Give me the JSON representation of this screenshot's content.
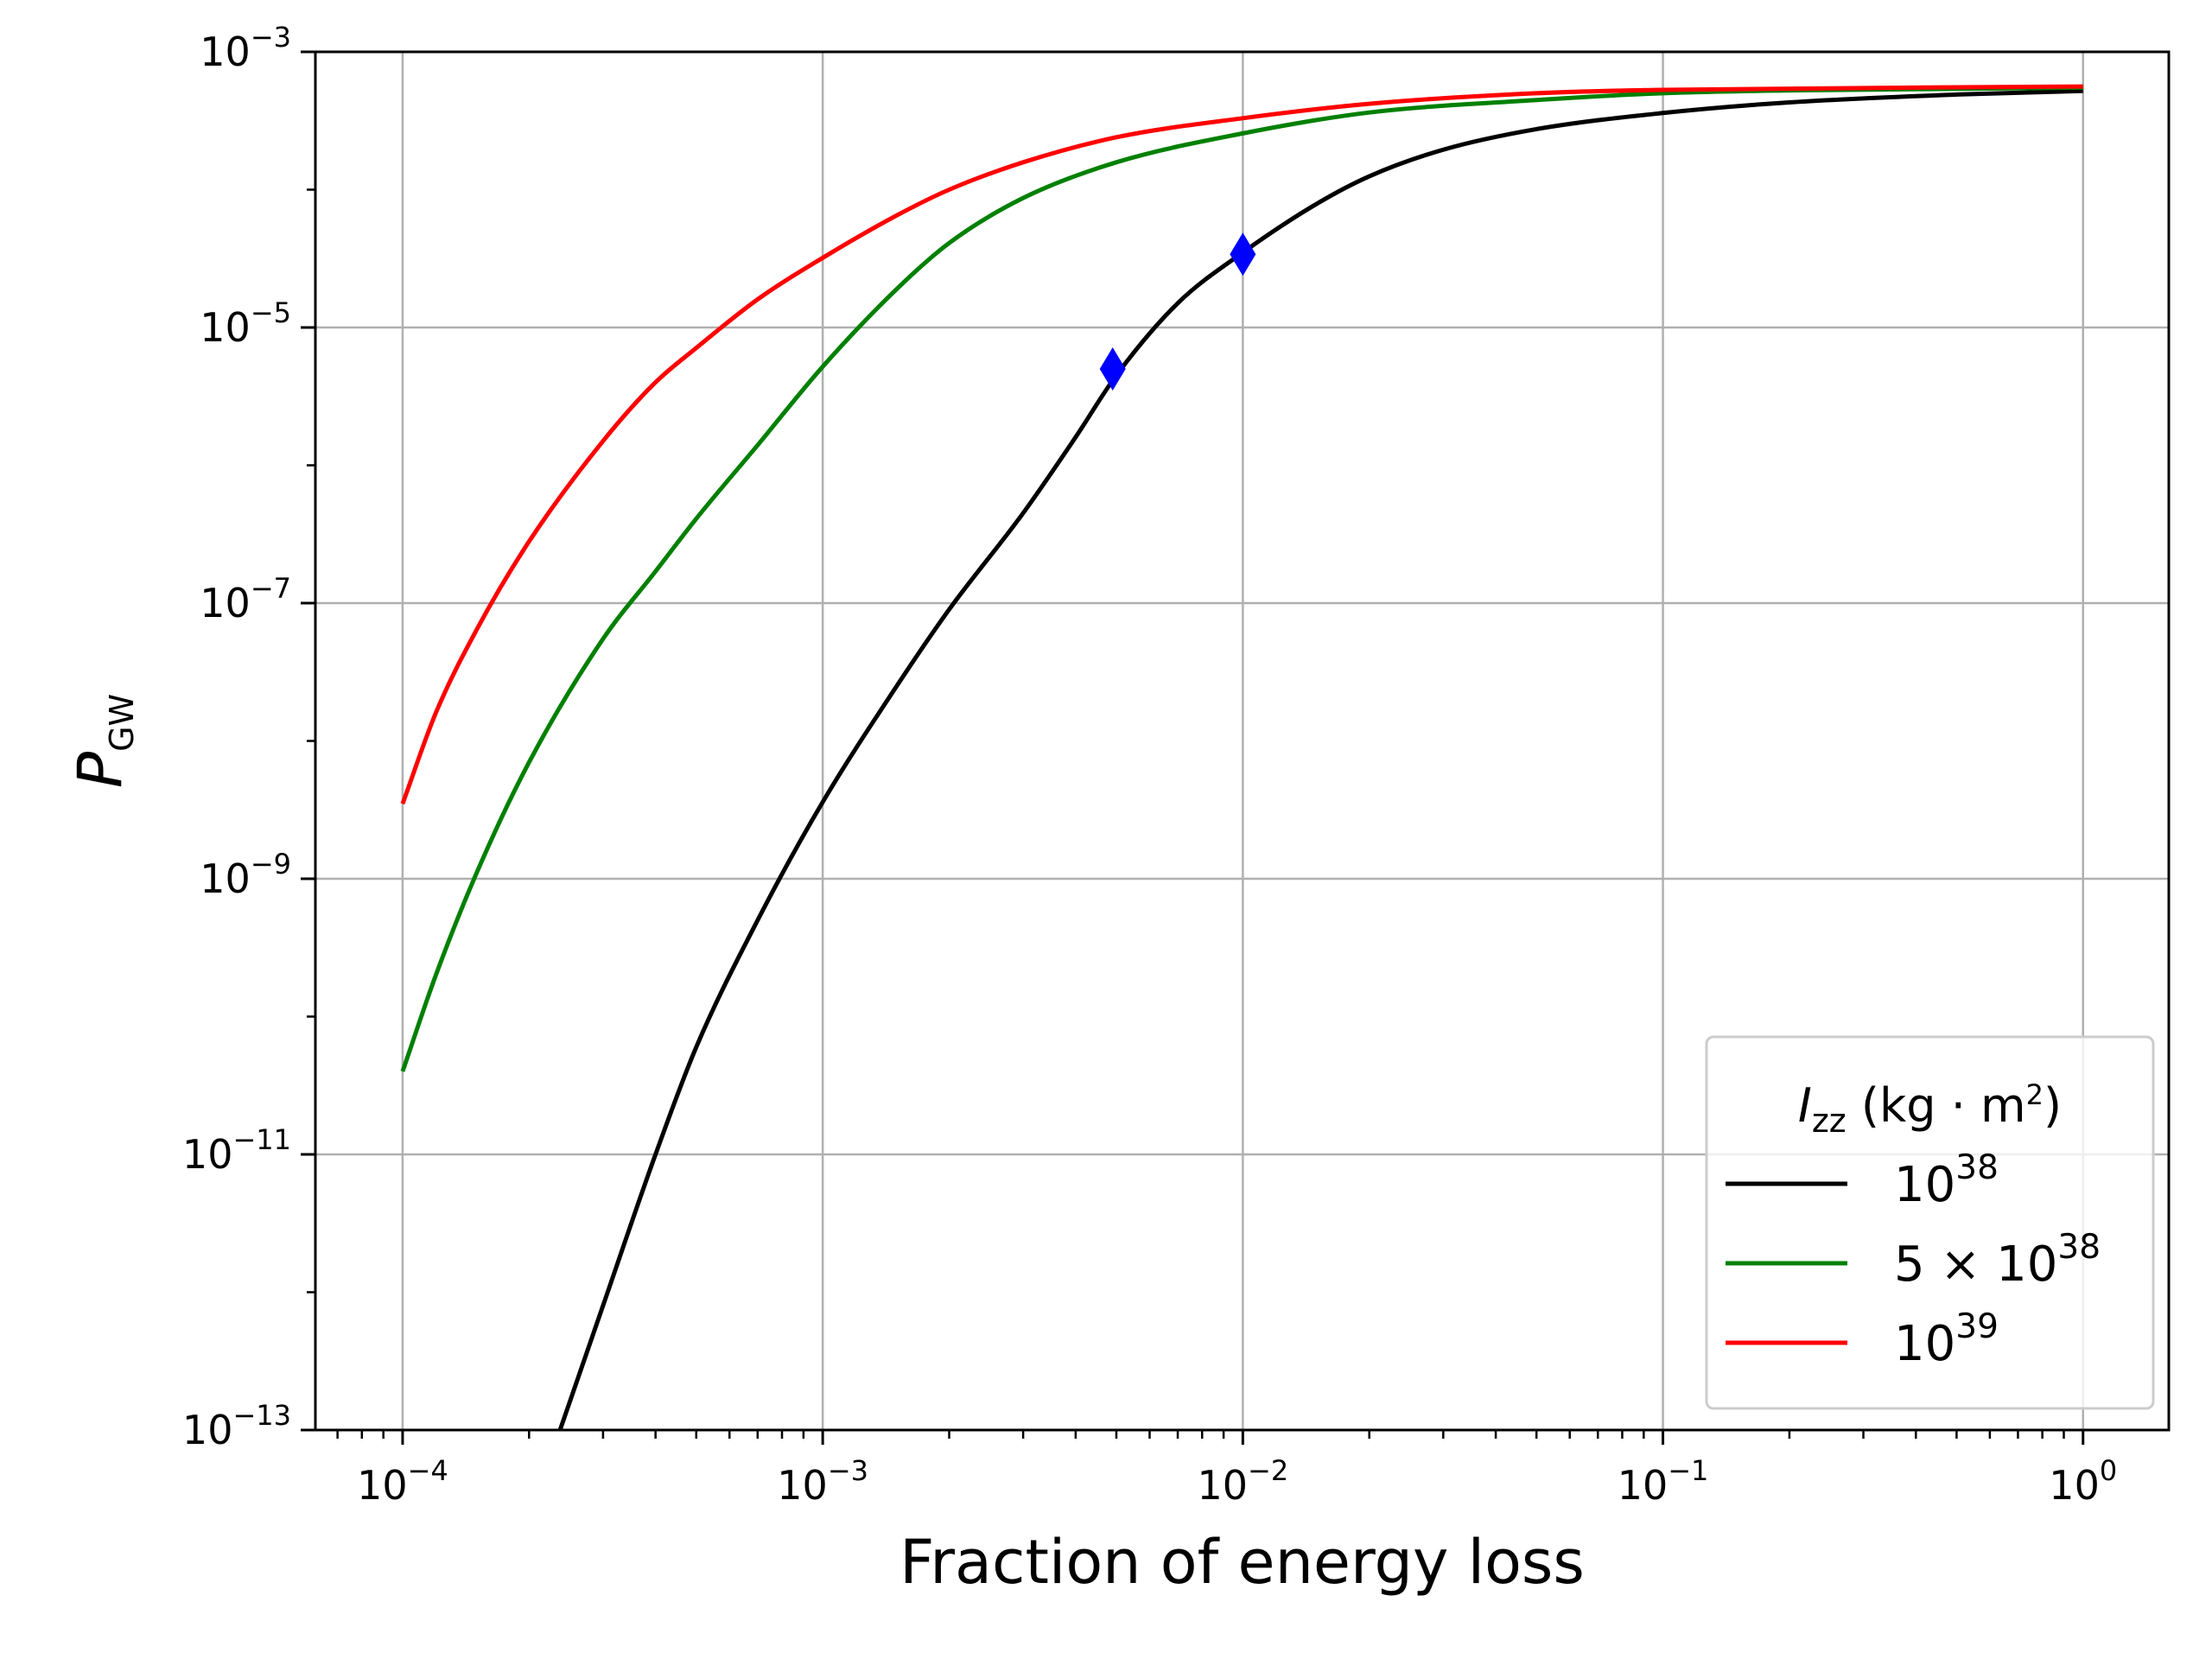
{
  "chart_data": {
    "type": "line",
    "xscale": "log",
    "yscale": "log",
    "xlabel": "Fraction of energy loss",
    "ylabel": {
      "base": "P",
      "subscript": "GW"
    },
    "xlim": [
      6.2e-05,
      1.6
    ],
    "ylim": [
      1e-13,
      0.001
    ],
    "grid": true,
    "x_ticks": [
      {
        "base": "10",
        "exp": "−4",
        "value": 0.0001
      },
      {
        "base": "10",
        "exp": "−3",
        "value": 0.001
      },
      {
        "base": "10",
        "exp": "−2",
        "value": 0.01
      },
      {
        "base": "10",
        "exp": "−1",
        "value": 0.1
      },
      {
        "base": "10",
        "exp": "0",
        "value": 1
      }
    ],
    "y_ticks": [
      {
        "base": "10",
        "exp": "−3",
        "value": 0.001
      },
      {
        "base": "10",
        "exp": "−5",
        "value": 1e-05
      },
      {
        "base": "10",
        "exp": "−7",
        "value": 1e-07
      },
      {
        "base": "10",
        "exp": "−9",
        "value": 1e-09
      },
      {
        "base": "10",
        "exp": "−11",
        "value": 1e-11
      },
      {
        "base": "10",
        "exp": "−13",
        "value": 1e-13
      }
    ],
    "legend": {
      "position": "lower right",
      "title": {
        "italic": "I",
        "subscript": "zz",
        "text": " (kg · m",
        "sup": "2",
        "close": ")"
      }
    },
    "series": [
      {
        "name": "10^38",
        "label": {
          "base": "10",
          "sup": "38"
        },
        "color": "#000000",
        "x": [
          0.000237,
          0.0003,
          0.0004,
          0.0005,
          0.0007,
          0.001,
          0.0015,
          0.002,
          0.003,
          0.004,
          0.005,
          0.007,
          0.01,
          0.015,
          0.02,
          0.03,
          0.05,
          0.1,
          0.2,
          0.5,
          1.0
        ],
        "y": [
          1e-13,
          8e-13,
          1e-11,
          6e-11,
          5e-10,
          3.6e-09,
          2.5e-08,
          9e-08,
          4.5e-07,
          1.6e-06,
          4.5e-06,
          1.5e-05,
          3.5e-05,
          7.9e-05,
          0.000125,
          0.000195,
          0.000275,
          0.00036,
          0.00043,
          0.00049,
          0.00052
        ]
      },
      {
        "name": "5×10^38",
        "label": {
          "base": "5 × 10",
          "sup": "38"
        },
        "color": "#008000",
        "x": [
          0.0001,
          0.00012,
          0.00015,
          0.0002,
          0.0003,
          0.0004,
          0.0005,
          0.0007,
          0.001,
          0.0015,
          0.002,
          0.003,
          0.005,
          0.01,
          0.02,
          0.05,
          0.1,
          0.2,
          1.0
        ],
        "y": [
          4e-11,
          2e-10,
          1.1e-09,
          7e-09,
          5.5e-08,
          1.7e-07,
          4.1e-07,
          1.4e-06,
          5.2e-06,
          1.9e-05,
          4.1e-05,
          8.7e-05,
          0.000158,
          0.000256,
          0.000363,
          0.000447,
          0.000501,
          0.000525,
          0.00055
        ]
      },
      {
        "name": "10^39",
        "label": {
          "base": "10",
          "sup": "39"
        },
        "color": "#ff0000",
        "x": [
          0.0001,
          0.00012,
          0.00015,
          0.0002,
          0.0003,
          0.0004,
          0.0005,
          0.0007,
          0.001,
          0.0015,
          0.002,
          0.003,
          0.005,
          0.01,
          0.02,
          0.05,
          0.1,
          1.0
        ],
        "y": [
          3.5e-09,
          1.6e-08,
          6.4e-08,
          2.8e-07,
          1.5e-06,
          4e-06,
          7.1e-06,
          1.6e-05,
          3.2e-05,
          6.5e-05,
          0.0001,
          0.000158,
          0.00024,
          0.00033,
          0.00042,
          0.000501,
          0.00053,
          0.00056
        ]
      }
    ],
    "markers": [
      {
        "name": "blue diamond",
        "shape": "diamond",
        "color": "#0000ff",
        "x": 0.0049,
        "y": 5e-06
      },
      {
        "name": "blue diamond",
        "shape": "diamond",
        "color": "#0000ff",
        "x": 0.01,
        "y": 3.4e-05
      }
    ]
  }
}
